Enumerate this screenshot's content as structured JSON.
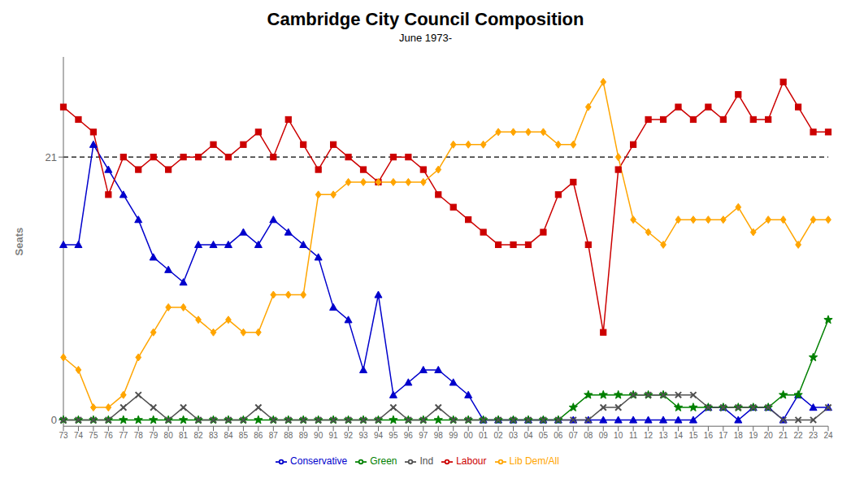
{
  "chart_data": {
    "type": "line",
    "title": "Cambridge City Council Composition",
    "subtitle": "June 1973-",
    "ylabel": "Seats",
    "categories": [
      "73",
      "74",
      "75",
      "76",
      "77",
      "78",
      "79",
      "80",
      "81",
      "82",
      "83",
      "84",
      "85",
      "86",
      "87",
      "88",
      "89",
      "90",
      "91",
      "92",
      "93",
      "94",
      "95",
      "96",
      "97",
      "98",
      "99",
      "00",
      "01",
      "02",
      "03",
      "04",
      "05",
      "06",
      "07",
      "08",
      "09",
      "10",
      "11",
      "12",
      "13",
      "14",
      "15",
      "16",
      "17",
      "18",
      "19",
      "20",
      "21",
      "22",
      "23",
      "24"
    ],
    "series": [
      {
        "name": "Conservative",
        "color": "#0000CC",
        "marker": "triangle",
        "values": [
          14,
          14,
          22,
          20,
          18,
          16,
          13,
          12,
          11,
          14,
          14,
          14,
          15,
          14,
          16,
          15,
          14,
          13,
          9,
          8,
          4,
          10,
          2,
          3,
          4,
          4,
          3,
          2,
          0,
          0,
          0,
          0,
          0,
          0,
          0,
          0,
          0,
          0,
          0,
          0,
          0,
          0,
          0,
          1,
          1,
          0,
          1,
          1,
          0,
          2,
          1,
          1
        ]
      },
      {
        "name": "Labour",
        "color": "#CC0000",
        "marker": "square",
        "values": [
          25,
          24,
          23,
          18,
          21,
          20,
          21,
          20,
          21,
          21,
          22,
          21,
          22,
          23,
          21,
          24,
          22,
          20,
          22,
          21,
          20,
          19,
          21,
          21,
          20,
          18,
          17,
          16,
          15,
          14,
          14,
          14,
          15,
          18,
          19,
          14,
          7,
          20,
          22,
          24,
          24,
          25,
          24,
          25,
          24,
          26,
          24,
          24,
          27,
          25,
          23,
          23
        ]
      },
      {
        "name": "Lib Dem/All",
        "color": "#FFA500",
        "marker": "diamond",
        "values": [
          5,
          4,
          1,
          1,
          2,
          5,
          7,
          9,
          9,
          8,
          7,
          8,
          7,
          7,
          10,
          10,
          10,
          18,
          18,
          19,
          19,
          19,
          19,
          19,
          19,
          20,
          22,
          22,
          22,
          23,
          23,
          23,
          23,
          22,
          22,
          25,
          27,
          21,
          16,
          15,
          14,
          16,
          16,
          16,
          16,
          17,
          15,
          16,
          16,
          14,
          16,
          16
        ]
      },
      {
        "name": "Green",
        "color": "#008000",
        "marker": "star",
        "values": [
          0,
          0,
          0,
          0,
          0,
          0,
          0,
          0,
          0,
          0,
          0,
          0,
          0,
          0,
          0,
          0,
          0,
          0,
          0,
          0,
          0,
          0,
          0,
          0,
          0,
          0,
          0,
          0,
          0,
          0,
          0,
          0,
          0,
          0,
          1,
          2,
          2,
          2,
          2,
          2,
          2,
          1,
          1,
          1,
          1,
          1,
          1,
          1,
          2,
          2,
          5,
          8
        ]
      },
      {
        "name": "Ind",
        "color": "#505050",
        "marker": "x",
        "values": [
          0,
          0,
          0,
          0,
          1,
          2,
          1,
          0,
          1,
          0,
          0,
          0,
          0,
          1,
          0,
          0,
          0,
          0,
          0,
          0,
          0,
          0,
          1,
          0,
          0,
          1,
          0,
          0,
          0,
          0,
          0,
          0,
          0,
          0,
          0,
          0,
          1,
          1,
          2,
          2,
          2,
          2,
          2,
          1,
          1,
          1,
          1,
          1,
          0,
          0,
          0,
          1
        ]
      }
    ],
    "reference_lines": [
      {
        "value": 21,
        "color": "#000000",
        "line_style": "dashed"
      }
    ],
    "ylim": [
      -0.5,
      29
    ],
    "yticks": [
      0,
      21
    ],
    "grid": false,
    "legend": "bottom"
  }
}
